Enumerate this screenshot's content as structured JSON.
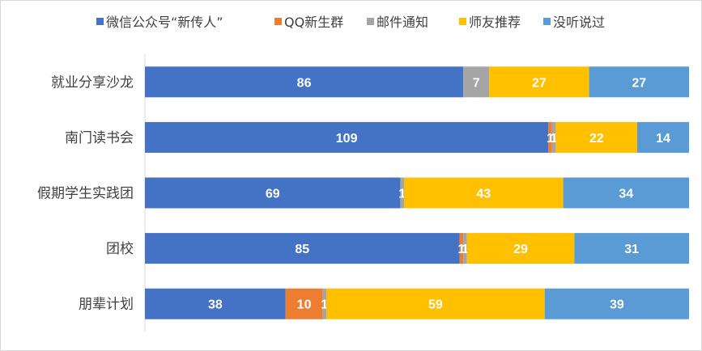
{
  "chart_data": {
    "type": "bar",
    "orientation": "horizontal",
    "stacked": true,
    "title": "",
    "xlabel": "",
    "ylabel": "",
    "categories": [
      "就业分享沙龙",
      "南门读书会",
      "假期学生实践团",
      "团校",
      "朋辈计划"
    ],
    "xlim": [
      0,
      147
    ],
    "grid": false,
    "legend_position": "top",
    "series": [
      {
        "name": "微信公众号“新传人”",
        "color": "#4472C4",
        "values": [
          86,
          109,
          69,
          85,
          38
        ]
      },
      {
        "name": "QQ新生群",
        "color": "#ED7D31",
        "values": [
          0,
          1,
          0,
          1,
          10
        ]
      },
      {
        "name": "邮件通知",
        "color": "#A5A5A5",
        "values": [
          7,
          1,
          1,
          1,
          1
        ]
      },
      {
        "name": "师友推荐",
        "color": "#FFC000",
        "values": [
          27,
          22,
          43,
          29,
          59
        ]
      },
      {
        "name": "没听说过",
        "color": "#5B9BD5",
        "values": [
          27,
          14,
          34,
          31,
          39
        ]
      }
    ]
  }
}
